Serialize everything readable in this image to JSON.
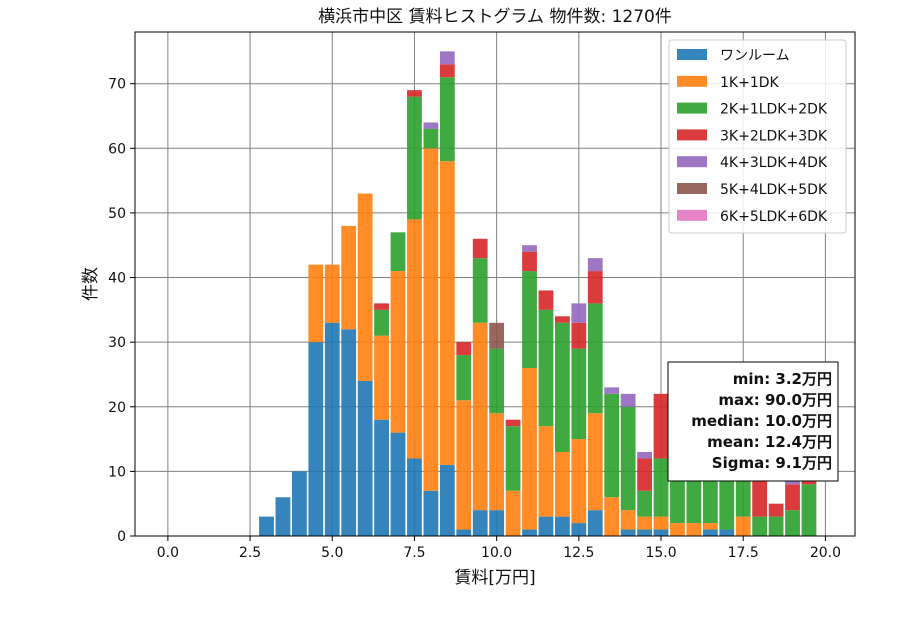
{
  "chart_data": {
    "type": "bar",
    "stacked": true,
    "title": "横浜市中区 賃料ヒストグラム  物件数: 1270件",
    "xlabel": "賃料[万円]",
    "ylabel": "件数",
    "xlim": [
      -1.0,
      20.9
    ],
    "ylim": [
      0,
      78
    ],
    "xticks": [
      "0.0",
      "2.5",
      "5.0",
      "7.5",
      "10.0",
      "12.5",
      "15.0",
      "17.5",
      "20.0"
    ],
    "xtick_values": [
      0,
      2.5,
      5,
      7.5,
      10,
      12.5,
      15,
      17.5,
      20
    ],
    "yticks": [
      "0",
      "10",
      "20",
      "30",
      "40",
      "50",
      "60",
      "70"
    ],
    "ytick_values": [
      0,
      10,
      20,
      30,
      40,
      50,
      60,
      70
    ],
    "grid": true,
    "legend_position": "top-right",
    "bin_width": 0.5,
    "bins": [
      3.0,
      3.5,
      4.0,
      4.5,
      5.0,
      5.5,
      6.0,
      6.5,
      7.0,
      7.5,
      8.0,
      8.5,
      9.0,
      9.5,
      10.0,
      10.5,
      11.0,
      11.5,
      12.0,
      12.5,
      13.0,
      13.5,
      14.0,
      14.5,
      15.0,
      15.5,
      16.0,
      16.5,
      17.0,
      17.5,
      18.0,
      18.5,
      19.0,
      19.5
    ],
    "series": [
      {
        "name": "ワンルーム",
        "color": "#1f77b4",
        "values": [
          3,
          6,
          10,
          30,
          33,
          32,
          24,
          18,
          16,
          12,
          7,
          11,
          1,
          4,
          4,
          0,
          1,
          3,
          3,
          2,
          4,
          0,
          1,
          1,
          1,
          0,
          0,
          1,
          1,
          0,
          0,
          0,
          0,
          0
        ]
      },
      {
        "name": "1K+1DK",
        "color": "#ff7f0e",
        "values": [
          0,
          0,
          0,
          12,
          9,
          16,
          29,
          13,
          25,
          37,
          53,
          47,
          20,
          29,
          15,
          7,
          25,
          14,
          10,
          13,
          15,
          6,
          3,
          2,
          2,
          2,
          2,
          1,
          0,
          3,
          0,
          0,
          0,
          0
        ]
      },
      {
        "name": "2K+1LDK+2DK",
        "color": "#2ca02c",
        "values": [
          0,
          0,
          0,
          0,
          0,
          0,
          0,
          4,
          6,
          19,
          3,
          13,
          7,
          10,
          10,
          10,
          15,
          18,
          20,
          14,
          17,
          16,
          16,
          4,
          9,
          17,
          15,
          20,
          16,
          10,
          3,
          3,
          4,
          8
        ]
      },
      {
        "name": "3K+2LDK+3DK",
        "color": "#d62728",
        "values": [
          0,
          0,
          0,
          0,
          0,
          0,
          0,
          1,
          0,
          1,
          0,
          2,
          2,
          3,
          0,
          1,
          3,
          3,
          1,
          4,
          5,
          0,
          0,
          5,
          10,
          5,
          3,
          0,
          0,
          6,
          6,
          2,
          4,
          1
        ]
      },
      {
        "name": "4K+3LDK+4DK",
        "color": "#9467bd",
        "values": [
          0,
          0,
          0,
          0,
          0,
          0,
          0,
          0,
          0,
          0,
          1,
          2,
          0,
          0,
          0,
          0,
          1,
          0,
          0,
          3,
          2,
          1,
          2,
          1,
          0,
          0,
          0,
          0,
          0,
          0,
          0,
          0,
          1,
          0
        ]
      },
      {
        "name": "5K+4LDK+5DK",
        "color": "#8c564b",
        "values": [
          0,
          0,
          0,
          0,
          0,
          0,
          0,
          0,
          0,
          0,
          0,
          0,
          0,
          0,
          4,
          0,
          0,
          0,
          0,
          0,
          0,
          0,
          0,
          0,
          0,
          0,
          0,
          0,
          0,
          0,
          0,
          0,
          0,
          0
        ]
      },
      {
        "name": "6K+5LDK+6DK",
        "color": "#e377c2",
        "values": [
          0,
          0,
          0,
          0,
          0,
          0,
          0,
          0,
          0,
          0,
          0,
          0,
          0,
          0,
          0,
          0,
          0,
          0,
          0,
          0,
          0,
          0,
          0,
          0,
          0,
          0,
          0,
          0,
          0,
          0,
          0,
          0,
          0,
          0
        ]
      }
    ],
    "stats": [
      "min: 3.2万円",
      "max: 90.0万円",
      "median: 10.0万円",
      "mean: 12.4万円",
      "Sigma: 9.1万円"
    ]
  }
}
